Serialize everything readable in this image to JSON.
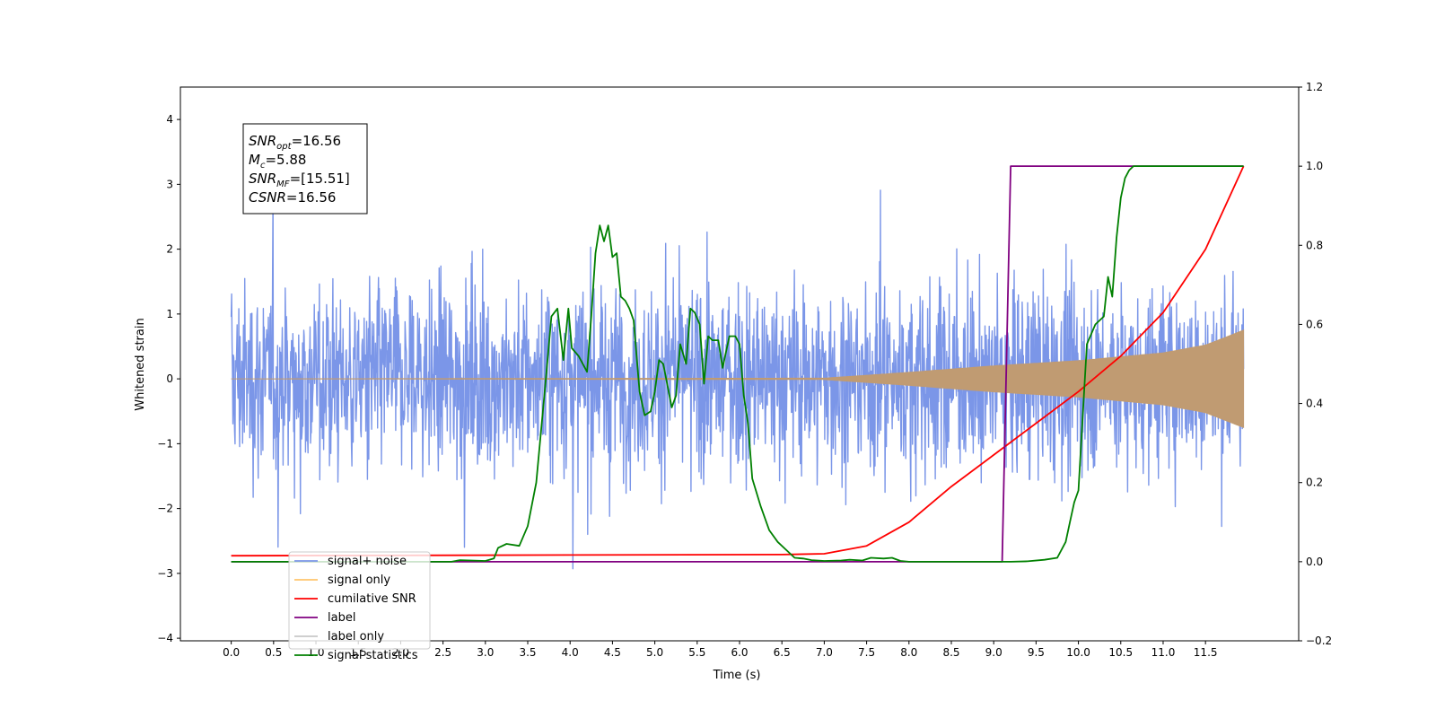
{
  "chart_data": {
    "type": "line",
    "xlabel": "Time (s)",
    "ylabel": "Whitened strain",
    "xlim": [
      -0.6,
      12.6
    ],
    "ylim": [
      -4.04,
      4.5
    ],
    "y2lim": [
      -0.2,
      1.2
    ],
    "x_ticks": [
      "0.0",
      "0.5",
      "1.0",
      "1.5",
      "2.0",
      "2.5",
      "3.0",
      "3.5",
      "4.0",
      "4.5",
      "5.0",
      "5.5",
      "6.0",
      "6.5",
      "7.0",
      "7.5",
      "8.0",
      "8.5",
      "9.0",
      "9.5",
      "10.0",
      "10.5",
      "11.0",
      "11.5"
    ],
    "y_ticks": [
      "4",
      "3",
      "2",
      "1",
      "0",
      "−1",
      "−2",
      "−3",
      "−4"
    ],
    "y2_ticks": [
      "1.2",
      "1.0",
      "0.8",
      "0.6",
      "0.4",
      "0.2",
      "0.0",
      "−0.2"
    ],
    "grid": false,
    "legend_position": "lower-left",
    "annotation": [
      {
        "base": "SNR",
        "sub": "opt",
        "value": "=16.56"
      },
      {
        "base": "M",
        "sub": "c",
        "value": "=5.88"
      },
      {
        "base": "SNR",
        "sub": "MF",
        "value": "=[15.51]"
      },
      {
        "base": "CSNR",
        "sub": "",
        "value": "=16.56"
      }
    ],
    "series": [
      {
        "name": "signal+ noise",
        "axis": "left",
        "color": "#7b96e8",
        "style": "noise band, std about 0.85, peaks near ±3.5"
      },
      {
        "name": "signal only",
        "axis": "left",
        "color": "#ffc46b",
        "amplitude_envelope": {
          "x": [
            0,
            7.0,
            8.0,
            9.0,
            10.0,
            11.0,
            11.5,
            11.95
          ],
          "y": [
            0.0,
            0.01,
            0.1,
            0.2,
            0.28,
            0.4,
            0.52,
            0.75
          ]
        }
      },
      {
        "name": "cumilative SNR",
        "axis": "right",
        "color": "#ff0000",
        "x": [
          0,
          6.5,
          7.0,
          7.5,
          8.0,
          8.5,
          9.0,
          9.5,
          10.0,
          10.5,
          11.0,
          11.5,
          11.95
        ],
        "y": [
          0.015,
          0.018,
          0.02,
          0.04,
          0.1,
          0.19,
          0.27,
          0.35,
          0.43,
          0.52,
          0.63,
          0.79,
          1.0
        ]
      },
      {
        "name": "label",
        "axis": "right",
        "color": "#800080",
        "x": [
          0,
          9.1,
          9.1,
          9.2,
          11.95
        ],
        "y": [
          0.0,
          0.0,
          0.0,
          1.0,
          1.0
        ]
      },
      {
        "name": "label only",
        "axis": "right",
        "color": "#c8c8c8",
        "x": [],
        "y": []
      },
      {
        "name": "signal statistics",
        "axis": "right",
        "color": "#008000",
        "x": [
          0,
          2.6,
          2.7,
          3.0,
          3.1,
          3.15,
          3.25,
          3.4,
          3.5,
          3.6,
          3.7,
          3.78,
          3.85,
          3.92,
          3.98,
          4.02,
          4.1,
          4.2,
          4.25,
          4.3,
          4.35,
          4.4,
          4.45,
          4.5,
          4.55,
          4.6,
          4.65,
          4.7,
          4.75,
          4.82,
          4.88,
          4.95,
          5.0,
          5.05,
          5.1,
          5.2,
          5.25,
          5.3,
          5.37,
          5.42,
          5.47,
          5.53,
          5.58,
          5.63,
          5.68,
          5.75,
          5.8,
          5.88,
          5.95,
          6.0,
          6.05,
          6.1,
          6.15,
          6.25,
          6.35,
          6.45,
          6.55,
          6.65,
          6.75,
          6.85,
          7.0,
          7.2,
          7.3,
          7.45,
          7.55,
          7.7,
          7.8,
          7.9,
          8.0,
          9.2,
          9.4,
          9.6,
          9.75,
          9.85,
          9.9,
          9.95,
          10.0,
          10.1,
          10.2,
          10.3,
          10.35,
          10.4,
          10.45,
          10.5,
          10.55,
          10.6,
          10.65,
          10.8,
          11.0,
          11.5,
          11.95
        ],
        "y": [
          0.0,
          0.0,
          0.004,
          0.002,
          0.008,
          0.035,
          0.045,
          0.04,
          0.09,
          0.2,
          0.43,
          0.62,
          0.64,
          0.51,
          0.64,
          0.54,
          0.52,
          0.48,
          0.62,
          0.78,
          0.85,
          0.81,
          0.85,
          0.77,
          0.78,
          0.67,
          0.66,
          0.64,
          0.61,
          0.43,
          0.37,
          0.38,
          0.43,
          0.51,
          0.5,
          0.39,
          0.42,
          0.55,
          0.5,
          0.64,
          0.63,
          0.6,
          0.45,
          0.57,
          0.56,
          0.56,
          0.49,
          0.57,
          0.57,
          0.55,
          0.42,
          0.35,
          0.21,
          0.14,
          0.08,
          0.05,
          0.03,
          0.01,
          0.008,
          0.004,
          0.002,
          0.003,
          0.005,
          0.003,
          0.01,
          0.008,
          0.01,
          0.002,
          0.0,
          0.0,
          0.001,
          0.005,
          0.01,
          0.05,
          0.1,
          0.15,
          0.18,
          0.55,
          0.6,
          0.62,
          0.72,
          0.67,
          0.82,
          0.92,
          0.97,
          0.99,
          1.0,
          1.0,
          1.0,
          1.0,
          1.0
        ]
      }
    ]
  }
}
